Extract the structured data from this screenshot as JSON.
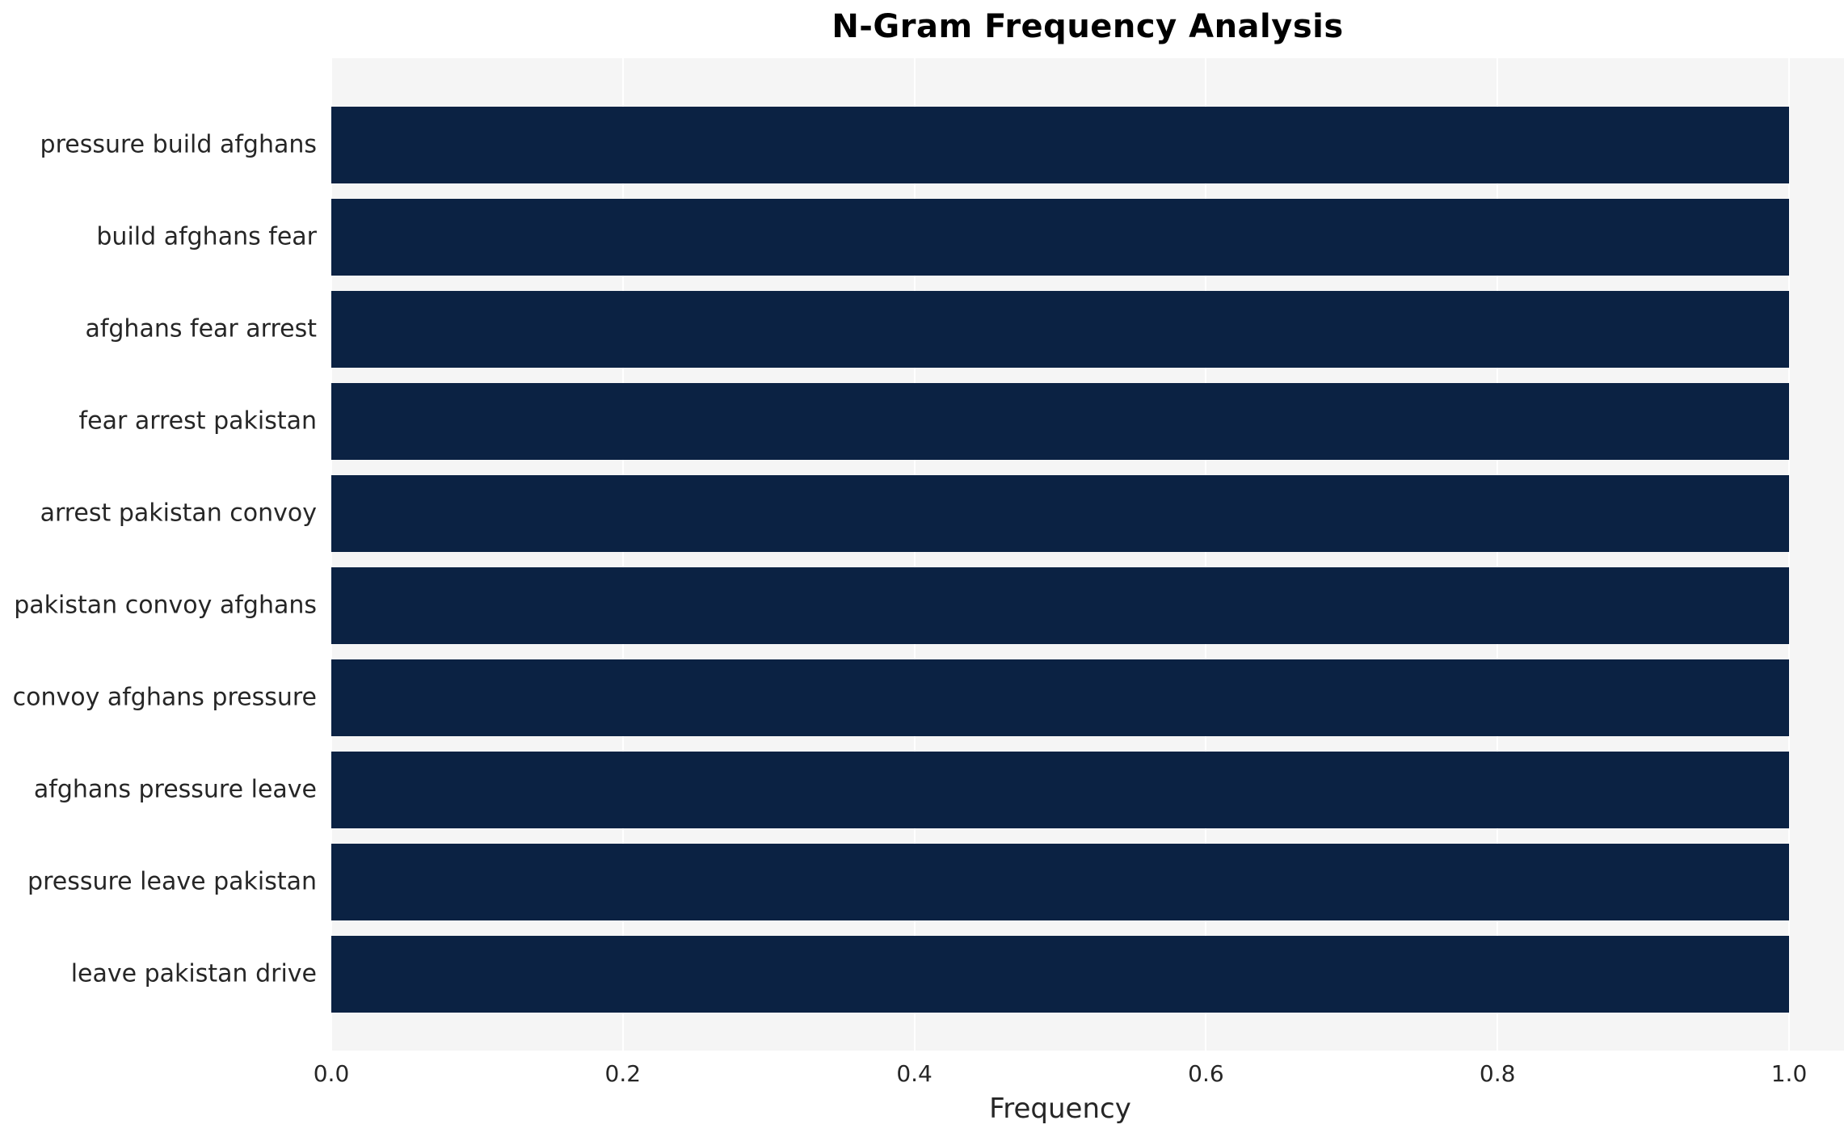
{
  "chart_data": {
    "type": "bar",
    "orientation": "horizontal",
    "title": "N-Gram Frequency Analysis",
    "xlabel": "Frequency",
    "ylabel": "",
    "categories": [
      "pressure build afghans",
      "build afghans fear",
      "afghans fear arrest",
      "fear arrest pakistan",
      "arrest pakistan convoy",
      "pakistan convoy afghans",
      "convoy afghans pressure",
      "afghans pressure leave",
      "pressure leave pakistan",
      "leave pakistan drive"
    ],
    "values": [
      1.0,
      1.0,
      1.0,
      1.0,
      1.0,
      1.0,
      1.0,
      1.0,
      1.0,
      1.0
    ],
    "xlim": [
      0.0,
      1.0
    ],
    "xticks": [
      0.0,
      0.2,
      0.4,
      0.6,
      0.8,
      1.0
    ],
    "xtick_labels": [
      "0.0",
      "0.2",
      "0.4",
      "0.6",
      "0.8",
      "1.0"
    ],
    "grid": "vertical-white-lines",
    "legend": "none",
    "colors": {
      "bar": "#0b2243",
      "plot_background": "#f5f5f5",
      "page_background": "#ffffff",
      "text": "#262626",
      "gridline": "#ffffff"
    }
  }
}
